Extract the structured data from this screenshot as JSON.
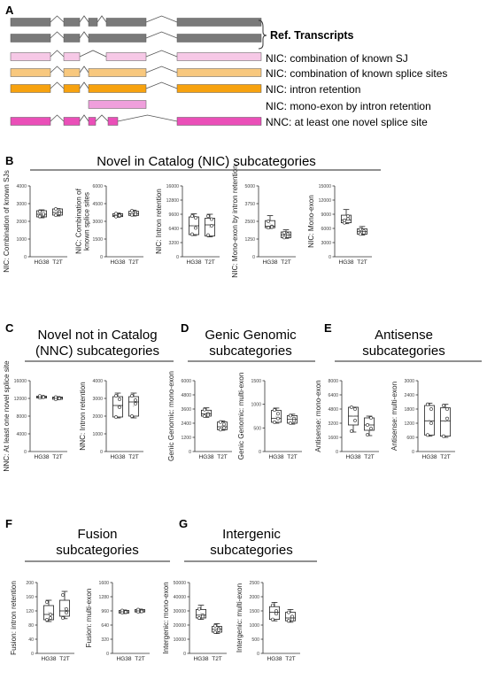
{
  "panel_a": {
    "letter": "A",
    "ref_label": "Ref. Transcripts",
    "colors": {
      "ref": "#7a7a7a",
      "light_pink": "#f6c8e6",
      "light_orange": "#f8c87e",
      "orange": "#f7a20f",
      "pink2": "#ef9fdc",
      "magenta": "#ea4fb8"
    },
    "labels": [
      "NIC: combination of known SJ",
      "NIC: combination of known splice sites",
      "NIC: intron retention",
      "NIC: mono-exon by intron retention",
      "NNC: at least one novel splice site"
    ]
  },
  "panel_b": {
    "letter": "B",
    "title": "Novel in Catalog (NIC) subcategories"
  },
  "panel_c": {
    "letter": "C",
    "title_line1": "Novel not in Catalog",
    "title_line2": "(NNC) subcategories"
  },
  "panel_d": {
    "letter": "D",
    "title_line1": "Genic Genomic",
    "title_line2": "subcategories"
  },
  "panel_e": {
    "letter": "E",
    "title_line1": "Antisense",
    "title_line2": "subcategories"
  },
  "panel_f": {
    "letter": "F",
    "title_line1": "Fusion",
    "title_line2": "subcategories"
  },
  "panel_g": {
    "letter": "G",
    "title_line1": "Intergenic",
    "title_line2": "subcategories"
  },
  "chart_data": [
    {
      "id": "b1",
      "type": "box",
      "ylabel": [
        "NIC: Combination of known SJs"
      ],
      "ylim": [
        0,
        4000
      ],
      "ticks": [
        "0",
        "1000",
        "2000",
        "3000",
        "4000"
      ],
      "categories": [
        "HG38",
        "T2T"
      ],
      "boxes": [
        {
          "min": 2200,
          "q1": 2250,
          "median": 2400,
          "q3": 2600,
          "max": 2650,
          "points": [
            2280,
            2350,
            2550,
            2420
          ]
        },
        {
          "min": 2300,
          "q1": 2350,
          "median": 2500,
          "q3": 2700,
          "max": 2720,
          "points": [
            2350,
            2550,
            2700,
            2450
          ]
        }
      ]
    },
    {
      "id": "b2",
      "type": "box",
      "ylabel": [
        "NIC: Combination of",
        "known splice sites"
      ],
      "ylim": [
        0,
        6000
      ],
      "ticks": [
        "0",
        "1500",
        "3000",
        "4500",
        "6000"
      ],
      "categories": [
        "HG38",
        "T2T"
      ],
      "boxes": [
        {
          "min": 3350,
          "q1": 3400,
          "median": 3500,
          "q3": 3650,
          "max": 3700,
          "points": [
            3400,
            3550,
            3650,
            3500
          ]
        },
        {
          "min": 3450,
          "q1": 3500,
          "median": 3650,
          "q3": 3850,
          "max": 3950,
          "points": [
            3550,
            3750,
            3900,
            3600
          ]
        }
      ]
    },
    {
      "id": "b3",
      "type": "box",
      "ylabel": [
        "NIC: Intron retention"
      ],
      "ylim": [
        0,
        16000
      ],
      "ticks": [
        "0",
        "3200",
        "6400",
        "9600",
        "12800",
        "16000"
      ],
      "categories": [
        "HG38",
        "T2T"
      ],
      "boxes": [
        {
          "min": 4800,
          "q1": 5000,
          "median": 7000,
          "q3": 9000,
          "max": 9700,
          "points": [
            5100,
            8800,
            9200,
            6500
          ]
        },
        {
          "min": 4500,
          "q1": 4700,
          "median": 7200,
          "q3": 8700,
          "max": 9600,
          "points": [
            4900,
            8500,
            9200,
            7000
          ]
        }
      ]
    },
    {
      "id": "b4",
      "type": "box",
      "ylabel": [
        "NIC: Mono-exon by intron retention"
      ],
      "ylim": [
        0,
        5000
      ],
      "ticks": [
        "0",
        "1250",
        "2500",
        "3750",
        "5000"
      ],
      "categories": [
        "HG38",
        "T2T"
      ],
      "boxes": [
        {
          "min": 2000,
          "q1": 2050,
          "median": 2150,
          "q3": 2550,
          "max": 2900,
          "points": [
            2050,
            2150,
            2500,
            2100
          ]
        },
        {
          "min": 1300,
          "q1": 1350,
          "median": 1550,
          "q3": 1750,
          "max": 1900,
          "points": [
            1350,
            1600,
            1700,
            1450
          ]
        }
      ]
    },
    {
      "id": "b5",
      "type": "box",
      "ylabel": [
        "NIC: Mono-exon"
      ],
      "ylim": [
        0,
        15000
      ],
      "ticks": [
        "0",
        "3000",
        "6000",
        "9000",
        "12000",
        "15000"
      ],
      "categories": [
        "HG38",
        "T2T"
      ],
      "boxes": [
        {
          "min": 7000,
          "q1": 7200,
          "median": 7800,
          "q3": 8800,
          "max": 10000,
          "points": [
            7200,
            8600,
            7700,
            8000
          ]
        },
        {
          "min": 4600,
          "q1": 4800,
          "median": 5300,
          "q3": 5900,
          "max": 6400,
          "points": [
            4800,
            5400,
            5800,
            5100
          ]
        }
      ]
    },
    {
      "id": "c1",
      "type": "box",
      "ylabel": [
        "NNC: At least one novel splice site"
      ],
      "ylim": [
        0,
        16000
      ],
      "ticks": [
        "0",
        "4000",
        "8000",
        "12000",
        "16000"
      ],
      "categories": [
        "HG38",
        "T2T"
      ],
      "boxes": [
        {
          "min": 12000,
          "q1": 12100,
          "median": 12300,
          "q3": 12500,
          "max": 12600,
          "points": [
            12150,
            12400,
            12550,
            12300
          ]
        },
        {
          "min": 11700,
          "q1": 11800,
          "median": 12100,
          "q3": 12300,
          "max": 12400,
          "points": [
            11800,
            12100,
            12300,
            12000
          ]
        }
      ]
    },
    {
      "id": "c2",
      "type": "box",
      "ylabel": [
        "NNC: Intron retention"
      ],
      "ylim": [
        0,
        4000
      ],
      "ticks": [
        "0",
        "1000",
        "2000",
        "3000",
        "4000"
      ],
      "categories": [
        "HG38",
        "T2T"
      ],
      "boxes": [
        {
          "min": 1900,
          "q1": 1950,
          "median": 2600,
          "q3": 3100,
          "max": 3300,
          "points": [
            1950,
            2950,
            3150,
            2500
          ]
        },
        {
          "min": 1900,
          "q1": 2000,
          "median": 2800,
          "q3": 3100,
          "max": 3300,
          "points": [
            2000,
            2900,
            3150,
            2700
          ]
        }
      ]
    },
    {
      "id": "d1",
      "type": "box",
      "ylabel": [
        "Genic Genomic: mono-exon"
      ],
      "ylim": [
        0,
        6000
      ],
      "ticks": [
        "0",
        "1200",
        "2400",
        "3600",
        "4800",
        "6000"
      ],
      "categories": [
        "HG38",
        "T2T"
      ],
      "boxes": [
        {
          "min": 2900,
          "q1": 3000,
          "median": 3200,
          "q3": 3500,
          "max": 3700,
          "points": [
            3000,
            3200,
            3550,
            3100
          ]
        },
        {
          "min": 1800,
          "q1": 1850,
          "median": 2100,
          "q3": 2500,
          "max": 2600,
          "points": [
            1850,
            2300,
            2500,
            2000
          ]
        }
      ]
    },
    {
      "id": "d2",
      "type": "box",
      "ylabel": [
        "Genic Genomic: multi-exon"
      ],
      "ylim": [
        0,
        1500
      ],
      "ticks": [
        "0",
        "500",
        "1000",
        "1500"
      ],
      "categories": [
        "HG38",
        "T2T"
      ],
      "boxes": [
        {
          "min": 600,
          "q1": 620,
          "median": 700,
          "q3": 870,
          "max": 920,
          "points": [
            620,
            800,
            880,
            700
          ]
        },
        {
          "min": 580,
          "q1": 600,
          "median": 680,
          "q3": 760,
          "max": 790,
          "points": [
            600,
            700,
            760,
            650
          ]
        }
      ]
    },
    {
      "id": "e1",
      "type": "box",
      "ylabel": [
        "Antisense: mono-exon"
      ],
      "ylim": [
        0,
        8000
      ],
      "ticks": [
        "0",
        "1600",
        "3200",
        "4800",
        "6400",
        "8000"
      ],
      "categories": [
        "HG38",
        "T2T"
      ],
      "boxes": [
        {
          "min": 2200,
          "q1": 3000,
          "median": 4000,
          "q3": 5000,
          "max": 5000,
          "points": [
            2300,
            4800,
            5000,
            3500
          ]
        },
        {
          "min": 1800,
          "q1": 2400,
          "median": 3000,
          "q3": 3800,
          "max": 4000,
          "points": [
            1900,
            3800,
            3000,
            2600
          ]
        }
      ]
    },
    {
      "id": "e2",
      "type": "box",
      "ylabel": [
        "Antisense: multi-exon"
      ],
      "ylim": [
        0,
        3000
      ],
      "ticks": [
        "0",
        "600",
        "1200",
        "1800",
        "2400",
        "3000"
      ],
      "categories": [
        "HG38",
        "T2T"
      ],
      "boxes": [
        {
          "min": 650,
          "q1": 700,
          "median": 1300,
          "q3": 1950,
          "max": 2050,
          "points": [
            700,
            1800,
            2000,
            1200
          ]
        },
        {
          "min": 600,
          "q1": 650,
          "median": 1300,
          "q3": 1850,
          "max": 2000,
          "points": [
            650,
            1800,
            1950,
            1400
          ]
        }
      ]
    },
    {
      "id": "f1",
      "type": "box",
      "ylabel": [
        "Fusion: intron retention"
      ],
      "ylim": [
        0,
        200
      ],
      "ticks": [
        "0",
        "40",
        "80",
        "120",
        "160",
        "200"
      ],
      "categories": [
        "HG38",
        "T2T"
      ],
      "boxes": [
        {
          "min": 90,
          "q1": 95,
          "median": 110,
          "q3": 135,
          "max": 150,
          "points": [
            95,
            110,
            145,
            100
          ]
        },
        {
          "min": 98,
          "q1": 105,
          "median": 120,
          "q3": 150,
          "max": 175,
          "points": [
            100,
            125,
            165,
            115
          ]
        }
      ]
    },
    {
      "id": "f2",
      "type": "box",
      "ylabel": [
        "Fusion: multi-exon"
      ],
      "ylim": [
        0,
        1600
      ],
      "ticks": [
        "0",
        "320",
        "640",
        "960",
        "1280",
        "1600"
      ],
      "categories": [
        "HG38",
        "T2T"
      ],
      "boxes": [
        {
          "min": 900,
          "q1": 910,
          "median": 940,
          "q3": 970,
          "max": 980,
          "points": [
            920,
            950,
            970,
            935
          ]
        },
        {
          "min": 920,
          "q1": 935,
          "median": 960,
          "q3": 990,
          "max": 1000,
          "points": [
            940,
            965,
            990,
            950
          ]
        }
      ]
    },
    {
      "id": "g1",
      "type": "box",
      "ylabel": [
        "Intergenic: mono-exon"
      ],
      "ylim": [
        0,
        50000
      ],
      "ticks": [
        "0",
        "10000",
        "20000",
        "30000",
        "40000",
        "50000"
      ],
      "categories": [
        "HG38",
        "T2T"
      ],
      "boxes": [
        {
          "min": 24000,
          "q1": 25000,
          "median": 27000,
          "q3": 31000,
          "max": 34000,
          "points": [
            25000,
            27000,
            31500,
            26000
          ]
        },
        {
          "min": 14000,
          "q1": 15000,
          "median": 17000,
          "q3": 19000,
          "max": 21000,
          "points": [
            15000,
            17500,
            19500,
            16500
          ]
        }
      ]
    },
    {
      "id": "g2",
      "type": "box",
      "ylabel": [
        "Intergenic: multi-exon"
      ],
      "ylim": [
        0,
        2500
      ],
      "ticks": [
        "0",
        "500",
        "1000",
        "1500",
        "2000",
        "2500"
      ],
      "categories": [
        "HG38",
        "T2T"
      ],
      "boxes": [
        {
          "min": 1150,
          "q1": 1200,
          "median": 1450,
          "q3": 1650,
          "max": 1800,
          "points": [
            1200,
            1500,
            1700,
            1400
          ]
        },
        {
          "min": 1100,
          "q1": 1150,
          "median": 1250,
          "q3": 1450,
          "max": 1550,
          "points": [
            1150,
            1300,
            1450,
            1200
          ]
        }
      ]
    }
  ]
}
